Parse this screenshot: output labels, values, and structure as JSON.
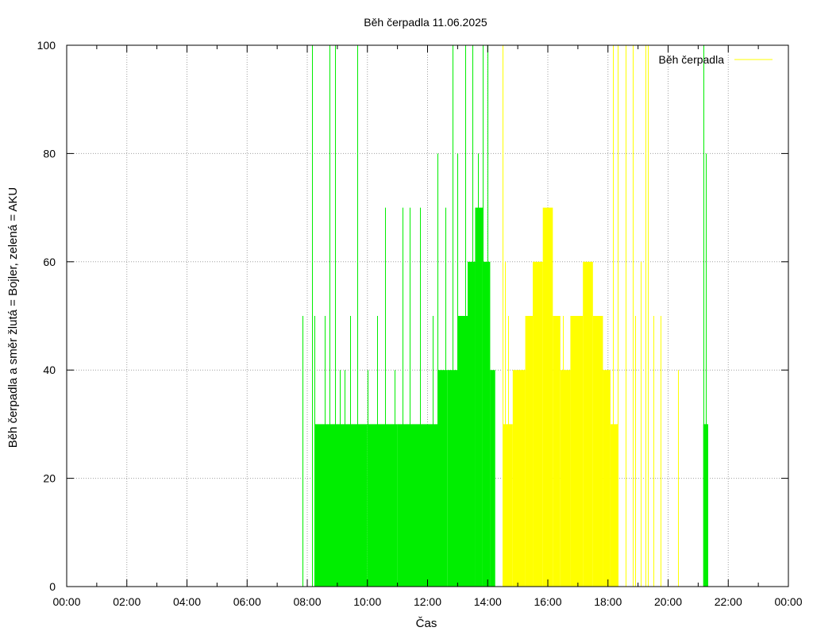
{
  "chart_data": {
    "type": "bar",
    "title": "Běh čerpadla 11.06.2025",
    "xlabel": "Čas",
    "ylabel": "Běh čerpadla a směr žlutá = Bojler, zelená = AKU",
    "xlim": [
      "00:00",
      "24:00"
    ],
    "ylim": [
      0,
      100
    ],
    "x_ticks": [
      "00:00",
      "02:00",
      "04:00",
      "06:00",
      "08:00",
      "10:00",
      "12:00",
      "14:00",
      "16:00",
      "18:00",
      "20:00",
      "22:00",
      "00:00"
    ],
    "y_ticks": [
      0,
      20,
      40,
      60,
      80,
      100
    ],
    "grid": true,
    "legend": {
      "position": "top-right",
      "entries": [
        "Běh čerpadla"
      ]
    },
    "colors": {
      "aku": "#00ee00",
      "bojler": "#ffff00",
      "legend_line": "#ffff00",
      "grid": "#a0a0a0",
      "frame": "#000000"
    },
    "series": [
      {
        "color_key": "aku",
        "segments": [
          {
            "start": "08:15",
            "end": "08:45",
            "value": 30
          },
          {
            "start": "08:45",
            "end": "09:15",
            "value": 30
          },
          {
            "start": "09:15",
            "end": "09:40",
            "value": 30
          },
          {
            "start": "09:40",
            "end": "10:00",
            "value": 30
          },
          {
            "start": "10:00",
            "end": "11:00",
            "value": 30
          },
          {
            "start": "11:00",
            "end": "12:00",
            "value": 30
          },
          {
            "start": "12:00",
            "end": "12:20",
            "value": 30
          },
          {
            "start": "12:20",
            "end": "12:40",
            "value": 40
          },
          {
            "start": "12:40",
            "end": "13:00",
            "value": 40
          },
          {
            "start": "13:00",
            "end": "13:20",
            "value": 50
          },
          {
            "start": "13:20",
            "end": "13:35",
            "value": 60
          },
          {
            "start": "13:35",
            "end": "13:50",
            "value": 70
          },
          {
            "start": "13:50",
            "end": "14:05",
            "value": 60
          },
          {
            "start": "14:05",
            "end": "14:15",
            "value": 40
          },
          {
            "start": "21:10",
            "end": "21:20",
            "value": 30
          }
        ],
        "spikes": [
          {
            "time": "07:50",
            "value": 50
          },
          {
            "time": "08:10",
            "value": 100
          },
          {
            "time": "08:15",
            "value": 50
          },
          {
            "time": "08:35",
            "value": 50
          },
          {
            "time": "08:45",
            "value": 100
          },
          {
            "time": "08:55",
            "value": 100
          },
          {
            "time": "09:05",
            "value": 40
          },
          {
            "time": "09:15",
            "value": 40
          },
          {
            "time": "09:25",
            "value": 50
          },
          {
            "time": "09:40",
            "value": 100
          },
          {
            "time": "10:00",
            "value": 40
          },
          {
            "time": "10:20",
            "value": 50
          },
          {
            "time": "10:35",
            "value": 70
          },
          {
            "time": "10:55",
            "value": 40
          },
          {
            "time": "11:10",
            "value": 70
          },
          {
            "time": "11:25",
            "value": 70
          },
          {
            "time": "11:45",
            "value": 70
          },
          {
            "time": "12:10",
            "value": 50
          },
          {
            "time": "12:20",
            "value": 80
          },
          {
            "time": "12:35",
            "value": 70
          },
          {
            "time": "12:50",
            "value": 100
          },
          {
            "time": "13:00",
            "value": 80
          },
          {
            "time": "13:15",
            "value": 100
          },
          {
            "time": "13:30",
            "value": 100
          },
          {
            "time": "13:40",
            "value": 80
          },
          {
            "time": "13:50",
            "value": 100
          },
          {
            "time": "14:00",
            "value": 100
          },
          {
            "time": "21:10",
            "value": 100
          },
          {
            "time": "21:15",
            "value": 80
          }
        ]
      },
      {
        "color_key": "bojler",
        "segments": [
          {
            "start": "14:30",
            "end": "14:50",
            "value": 30
          },
          {
            "start": "14:50",
            "end": "15:15",
            "value": 40
          },
          {
            "start": "15:15",
            "end": "15:30",
            "value": 50
          },
          {
            "start": "15:30",
            "end": "15:50",
            "value": 60
          },
          {
            "start": "15:50",
            "end": "16:10",
            "value": 70
          },
          {
            "start": "16:10",
            "end": "16:25",
            "value": 50
          },
          {
            "start": "16:25",
            "end": "16:45",
            "value": 40
          },
          {
            "start": "16:45",
            "end": "17:10",
            "value": 50
          },
          {
            "start": "17:10",
            "end": "17:30",
            "value": 60
          },
          {
            "start": "17:30",
            "end": "17:50",
            "value": 50
          },
          {
            "start": "17:50",
            "end": "18:05",
            "value": 40
          },
          {
            "start": "18:05",
            "end": "18:20",
            "value": 30
          }
        ],
        "spikes": [
          {
            "time": "14:30",
            "value": 100
          },
          {
            "time": "14:35",
            "value": 60
          },
          {
            "time": "14:40",
            "value": 50
          },
          {
            "time": "15:00",
            "value": 40
          },
          {
            "time": "15:10",
            "value": 40
          },
          {
            "time": "16:30",
            "value": 50
          },
          {
            "time": "18:10",
            "value": 100
          },
          {
            "time": "18:20",
            "value": 100
          },
          {
            "time": "18:35",
            "value": 100
          },
          {
            "time": "18:50",
            "value": 100
          },
          {
            "time": "18:55",
            "value": 50
          },
          {
            "time": "19:05",
            "value": 60
          },
          {
            "time": "19:15",
            "value": 100
          },
          {
            "time": "19:20",
            "value": 100
          },
          {
            "time": "19:30",
            "value": 50
          },
          {
            "time": "19:45",
            "value": 50
          },
          {
            "time": "20:20",
            "value": 40
          }
        ]
      }
    ]
  }
}
